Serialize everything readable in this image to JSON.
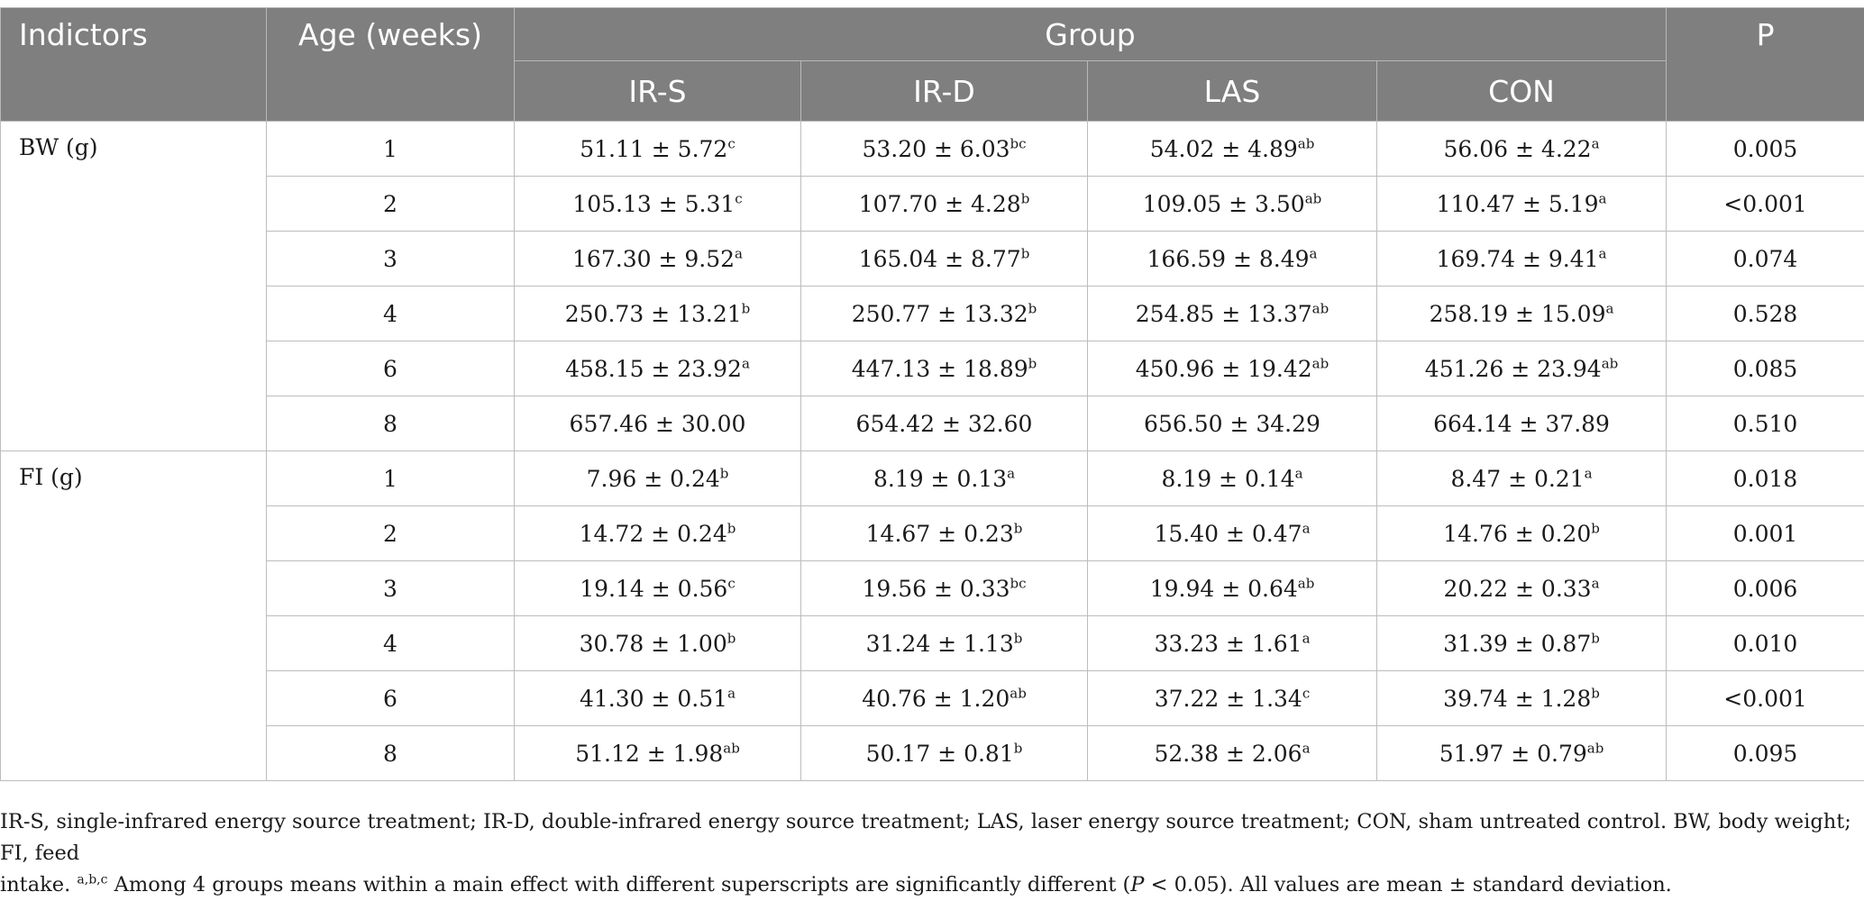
{
  "table": {
    "headers": {
      "indicators": "Indictors",
      "age": "Age (weeks)",
      "group": "Group",
      "groups": [
        "IR-S",
        "IR-D",
        "LAS",
        "CON"
      ],
      "p": "P"
    },
    "sections": [
      {
        "label": "BW (g)",
        "rows": [
          {
            "age": "1",
            "cells": [
              {
                "v": "51.11 ± 5.72",
                "s": "c"
              },
              {
                "v": "53.20 ± 6.03",
                "s": "bc"
              },
              {
                "v": "54.02 ± 4.89",
                "s": "ab"
              },
              {
                "v": "56.06 ± 4.22",
                "s": "a"
              }
            ],
            "p": "0.005"
          },
          {
            "age": "2",
            "cells": [
              {
                "v": "105.13 ± 5.31",
                "s": "c"
              },
              {
                "v": "107.70 ± 4.28",
                "s": "b"
              },
              {
                "v": "109.05 ± 3.50",
                "s": "ab"
              },
              {
                "v": "110.47 ± 5.19",
                "s": "a"
              }
            ],
            "p": "<0.001"
          },
          {
            "age": "3",
            "cells": [
              {
                "v": "167.30 ± 9.52",
                "s": "a"
              },
              {
                "v": "165.04 ± 8.77",
                "s": "b"
              },
              {
                "v": "166.59 ± 8.49",
                "s": "a"
              },
              {
                "v": "169.74 ± 9.41",
                "s": "a"
              }
            ],
            "p": "0.074"
          },
          {
            "age": "4",
            "cells": [
              {
                "v": "250.73 ± 13.21",
                "s": "b"
              },
              {
                "v": "250.77 ± 13.32",
                "s": "b"
              },
              {
                "v": "254.85 ± 13.37",
                "s": "ab"
              },
              {
                "v": "258.19 ± 15.09",
                "s": "a"
              }
            ],
            "p": "0.528"
          },
          {
            "age": "6",
            "cells": [
              {
                "v": "458.15 ± 23.92",
                "s": "a"
              },
              {
                "v": "447.13 ± 18.89",
                "s": "b"
              },
              {
                "v": "450.96 ± 19.42",
                "s": "ab"
              },
              {
                "v": "451.26 ± 23.94",
                "s": "ab"
              }
            ],
            "p": "0.085"
          },
          {
            "age": "8",
            "cells": [
              {
                "v": "657.46 ± 30.00",
                "s": ""
              },
              {
                "v": "654.42 ± 32.60",
                "s": ""
              },
              {
                "v": "656.50 ± 34.29",
                "s": ""
              },
              {
                "v": "664.14 ± 37.89",
                "s": ""
              }
            ],
            "p": "0.510"
          }
        ]
      },
      {
        "label": "FI (g)",
        "rows": [
          {
            "age": "1",
            "cells": [
              {
                "v": "7.96 ± 0.24",
                "s": "b"
              },
              {
                "v": "8.19 ± 0.13",
                "s": "a"
              },
              {
                "v": "8.19 ± 0.14",
                "s": "a"
              },
              {
                "v": "8.47 ± 0.21",
                "s": "a"
              }
            ],
            "p": "0.018"
          },
          {
            "age": "2",
            "cells": [
              {
                "v": "14.72 ± 0.24",
                "s": "b"
              },
              {
                "v": "14.67 ± 0.23",
                "s": "b"
              },
              {
                "v": "15.40 ± 0.47",
                "s": "a"
              },
              {
                "v": "14.76 ± 0.20",
                "s": "b"
              }
            ],
            "p": "0.001"
          },
          {
            "age": "3",
            "cells": [
              {
                "v": "19.14 ± 0.56",
                "s": "c"
              },
              {
                "v": "19.56 ± 0.33",
                "s": "bc"
              },
              {
                "v": "19.94 ± 0.64",
                "s": "ab"
              },
              {
                "v": "20.22 ± 0.33",
                "s": "a"
              }
            ],
            "p": "0.006"
          },
          {
            "age": "4",
            "cells": [
              {
                "v": "30.78 ± 1.00",
                "s": "b"
              },
              {
                "v": "31.24 ± 1.13",
                "s": "b"
              },
              {
                "v": "33.23 ± 1.61",
                "s": "a"
              },
              {
                "v": "31.39 ± 0.87",
                "s": "b"
              }
            ],
            "p": "0.010"
          },
          {
            "age": "6",
            "cells": [
              {
                "v": "41.30 ± 0.51",
                "s": "a"
              },
              {
                "v": "40.76 ± 1.20",
                "s": "ab"
              },
              {
                "v": "37.22 ± 1.34",
                "s": "c"
              },
              {
                "v": "39.74 ± 1.28",
                "s": "b"
              }
            ],
            "p": "<0.001"
          },
          {
            "age": "8",
            "cells": [
              {
                "v": "51.12 ± 1.98",
                "s": "ab"
              },
              {
                "v": "50.17 ± 0.81",
                "s": "b"
              },
              {
                "v": "52.38 ± 2.06",
                "s": "a"
              },
              {
                "v": "51.97 ± 0.79",
                "s": "ab"
              }
            ],
            "p": "0.095"
          }
        ]
      }
    ]
  },
  "footnote": {
    "line1": "IR-S, single-infrared energy source treatment; IR-D, double-infrared energy source treatment; LAS, laser energy source treatment; CON, sham untreated control. BW, body weight; FI, feed",
    "line2_start": "intake.",
    "superscripts": "a,b,c",
    "line2_mid": "Among 4 groups means within a main effect with different superscripts are significantly different (",
    "p_symbol": "P",
    "line2_end": "< 0.05). All values are mean ± standard deviation."
  },
  "colors": {
    "header_bg": "#7f7f7f",
    "header_text": "#ffffff",
    "grid": "#bdbdbd"
  }
}
